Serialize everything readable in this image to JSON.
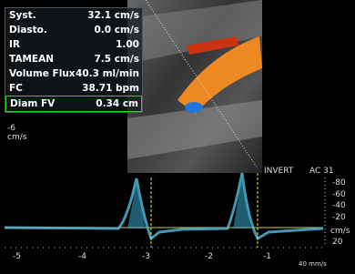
{
  "measurements": {
    "rows": [
      {
        "label": "Syst.",
        "value": "32.1 cm/s"
      },
      {
        "label": "Diasto.",
        "value": "0.0 cm/s"
      },
      {
        "label": "IR",
        "value": "1.00"
      },
      {
        "label": "TAMEAN",
        "value": "7.5 cm/s"
      },
      {
        "label": "Volume Flux",
        "value": "40.3 ml/min"
      },
      {
        "label": "FC",
        "value": "38.71 bpm"
      },
      {
        "label": "Diam FV",
        "value": "0.34 cm"
      }
    ]
  },
  "color_scale": {
    "value": "-6",
    "unit": "cm/s"
  },
  "spectrum": {
    "invert": "INVERT",
    "ac": "AC 31",
    "velocity_labels": [
      "-80",
      "-60",
      "-40",
      "-20",
      "cm/s",
      "20"
    ],
    "time_labels": [
      "-5",
      "-4",
      "-3",
      "-2",
      "-1"
    ],
    "sweep": "40 mm/s"
  }
}
